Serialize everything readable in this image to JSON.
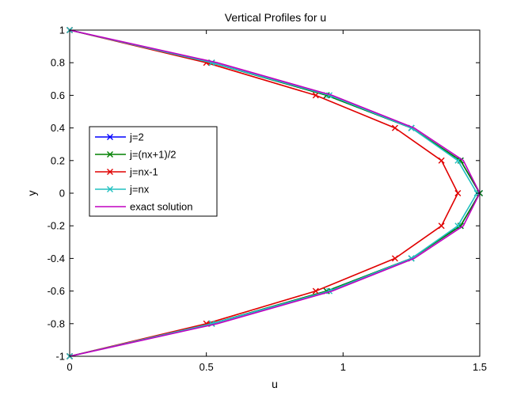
{
  "chart_data": {
    "type": "line",
    "title": "Vertical Profiles for u",
    "xlabel": "u",
    "ylabel": "y",
    "xlim": [
      0,
      1.5
    ],
    "ylim": [
      -1,
      1
    ],
    "xticks": [
      {
        "value": 0,
        "label": "0"
      },
      {
        "value": 0.5,
        "label": "0.5"
      },
      {
        "value": 1,
        "label": "1"
      },
      {
        "value": 1.5,
        "label": "1.5"
      }
    ],
    "yticks": [
      {
        "value": -1,
        "label": "-1"
      },
      {
        "value": -0.8,
        "label": "-0.8"
      },
      {
        "value": -0.6,
        "label": "-0.6"
      },
      {
        "value": -0.4,
        "label": "-0.4"
      },
      {
        "value": -0.2,
        "label": "-0.2"
      },
      {
        "value": 0,
        "label": "0"
      },
      {
        "value": 0.2,
        "label": "0.2"
      },
      {
        "value": 0.4,
        "label": "0.4"
      },
      {
        "value": 0.6,
        "label": "0.6"
      },
      {
        "value": 0.8,
        "label": "0.8"
      },
      {
        "value": 1,
        "label": "1"
      }
    ],
    "grid": false,
    "legend_position": "center-left",
    "series": [
      {
        "name": "j=2",
        "color": "#0000ff",
        "marker": "x",
        "x": [
          0,
          0.52,
          0.94,
          1.25,
          1.43,
          1.5,
          1.43,
          1.25,
          0.94,
          0.52,
          0
        ],
        "y": [
          1,
          0.8,
          0.6,
          0.4,
          0.2,
          0,
          -0.2,
          -0.4,
          -0.6,
          -0.8,
          -1
        ]
      },
      {
        "name": "j=(nx+1)/2",
        "color": "#008000",
        "marker": "x",
        "x": [
          0,
          0.52,
          0.94,
          1.25,
          1.43,
          1.5,
          1.43,
          1.25,
          0.94,
          0.52,
          0
        ],
        "y": [
          1,
          0.8,
          0.6,
          0.4,
          0.2,
          0,
          -0.2,
          -0.4,
          -0.6,
          -0.8,
          -1
        ]
      },
      {
        "name": "j=nx-1",
        "color": "#e00000",
        "marker": "x",
        "x": [
          0,
          0.5,
          0.9,
          1.19,
          1.36,
          1.42,
          1.36,
          1.19,
          0.9,
          0.5,
          0
        ],
        "y": [
          1,
          0.8,
          0.6,
          0.4,
          0.2,
          0,
          -0.2,
          -0.4,
          -0.6,
          -0.8,
          -1
        ]
      },
      {
        "name": "j=nx",
        "color": "#20c0c0",
        "marker": "x",
        "x": [
          0,
          0.52,
          0.95,
          1.25,
          1.42,
          1.49,
          1.42,
          1.25,
          0.95,
          0.52,
          0
        ],
        "y": [
          1,
          0.8,
          0.6,
          0.4,
          0.2,
          0,
          -0.2,
          -0.4,
          -0.6,
          -0.8,
          -1
        ]
      },
      {
        "name": "exact solution",
        "color": "#c000c0",
        "marker": "none",
        "x": [
          0,
          0.54,
          0.96,
          1.26,
          1.44,
          1.5,
          1.44,
          1.26,
          0.96,
          0.54,
          0
        ],
        "y": [
          1,
          0.8,
          0.6,
          0.4,
          0.2,
          0,
          -0.2,
          -0.4,
          -0.6,
          -0.8,
          -1
        ]
      }
    ]
  }
}
